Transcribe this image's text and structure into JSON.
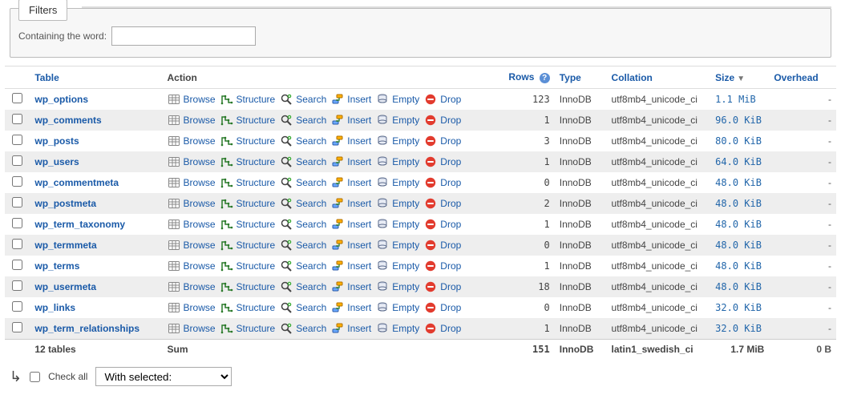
{
  "colors": {
    "link": "#1a5aa8",
    "row_even": "#eeeeee",
    "row_odd": "#ffffff",
    "border": "#dddddd",
    "size_text": "#2266aa",
    "help_bg": "#5b8fd6"
  },
  "filters": {
    "tab_label": "Filters",
    "containing_label": "Containing the word:",
    "containing_value": ""
  },
  "columns": {
    "table": "Table",
    "action": "Action",
    "rows": "Rows",
    "type": "Type",
    "collation": "Collation",
    "size": "Size",
    "overhead": "Overhead"
  },
  "action_labels": {
    "browse": "Browse",
    "structure": "Structure",
    "search": "Search",
    "insert": "Insert",
    "empty": "Empty",
    "drop": "Drop"
  },
  "tables": [
    {
      "name": "wp_options",
      "rows": "123",
      "type": "InnoDB",
      "collation": "utf8mb4_unicode_ci",
      "size": "1.1 MiB",
      "overhead": "-"
    },
    {
      "name": "wp_comments",
      "rows": "1",
      "type": "InnoDB",
      "collation": "utf8mb4_unicode_ci",
      "size": "96.0 KiB",
      "overhead": "-"
    },
    {
      "name": "wp_posts",
      "rows": "3",
      "type": "InnoDB",
      "collation": "utf8mb4_unicode_ci",
      "size": "80.0 KiB",
      "overhead": "-"
    },
    {
      "name": "wp_users",
      "rows": "1",
      "type": "InnoDB",
      "collation": "utf8mb4_unicode_ci",
      "size": "64.0 KiB",
      "overhead": "-"
    },
    {
      "name": "wp_commentmeta",
      "rows": "0",
      "type": "InnoDB",
      "collation": "utf8mb4_unicode_ci",
      "size": "48.0 KiB",
      "overhead": "-"
    },
    {
      "name": "wp_postmeta",
      "rows": "2",
      "type": "InnoDB",
      "collation": "utf8mb4_unicode_ci",
      "size": "48.0 KiB",
      "overhead": "-"
    },
    {
      "name": "wp_term_taxonomy",
      "rows": "1",
      "type": "InnoDB",
      "collation": "utf8mb4_unicode_ci",
      "size": "48.0 KiB",
      "overhead": "-"
    },
    {
      "name": "wp_termmeta",
      "rows": "0",
      "type": "InnoDB",
      "collation": "utf8mb4_unicode_ci",
      "size": "48.0 KiB",
      "overhead": "-"
    },
    {
      "name": "wp_terms",
      "rows": "1",
      "type": "InnoDB",
      "collation": "utf8mb4_unicode_ci",
      "size": "48.0 KiB",
      "overhead": "-"
    },
    {
      "name": "wp_usermeta",
      "rows": "18",
      "type": "InnoDB",
      "collation": "utf8mb4_unicode_ci",
      "size": "48.0 KiB",
      "overhead": "-"
    },
    {
      "name": "wp_links",
      "rows": "0",
      "type": "InnoDB",
      "collation": "utf8mb4_unicode_ci",
      "size": "32.0 KiB",
      "overhead": "-"
    },
    {
      "name": "wp_term_relationships",
      "rows": "1",
      "type": "InnoDB",
      "collation": "utf8mb4_unicode_ci",
      "size": "32.0 KiB",
      "overhead": "-"
    }
  ],
  "summary": {
    "label": "12 tables",
    "action": "Sum",
    "rows": "151",
    "type": "InnoDB",
    "collation": "latin1_swedish_ci",
    "size": "1.7 MiB",
    "overhead": "0 B"
  },
  "footer": {
    "check_all": "Check all",
    "with_selected": "With selected:"
  }
}
